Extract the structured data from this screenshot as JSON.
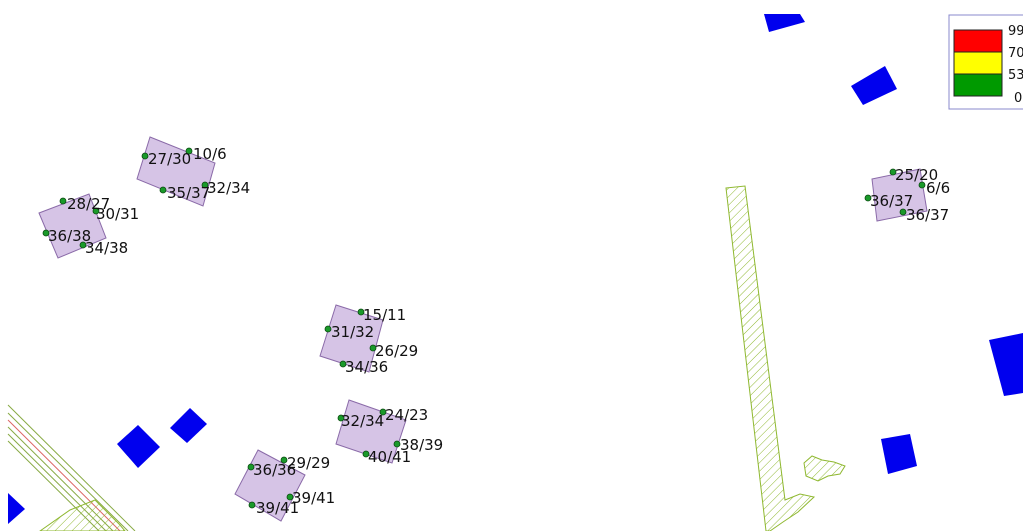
{
  "colors": {
    "building": "#0000ee",
    "receiver_area": "#d6c4e6",
    "receiver_area_stroke": "#8a6aa8",
    "point": "#1a9a2a",
    "hatch": "#8fb830",
    "legend_red": "#ff0000",
    "legend_yellow": "#ffff00",
    "legend_green": "#009a00",
    "legend_border": "#8888cc"
  },
  "legend": {
    "entries": [
      {
        "label": "99",
        "color": "#ff0000"
      },
      {
        "label": "70",
        "color": "#ffff00"
      },
      {
        "label": "53",
        "color": "#009a00"
      },
      {
        "label": "0",
        "color": ""
      }
    ]
  },
  "receivers": [
    {
      "id": "r1",
      "labels": [
        "27/30",
        "10/6",
        "35/37",
        "32/34"
      ]
    },
    {
      "id": "r2",
      "labels": [
        "28/27",
        "30/31",
        "36/38",
        "34/38"
      ]
    },
    {
      "id": "r3",
      "labels": [
        "15/11",
        "31/32",
        "26/29",
        "34/36"
      ]
    },
    {
      "id": "r4",
      "labels": [
        "24/23",
        "32/34",
        "38/39",
        "40/41"
      ]
    },
    {
      "id": "r5",
      "labels": [
        "36/36",
        "29/29",
        "39/41",
        "39/41"
      ]
    },
    {
      "id": "r6",
      "labels": [
        "25/20",
        "6/6",
        "36/37",
        "36/37"
      ]
    }
  ]
}
